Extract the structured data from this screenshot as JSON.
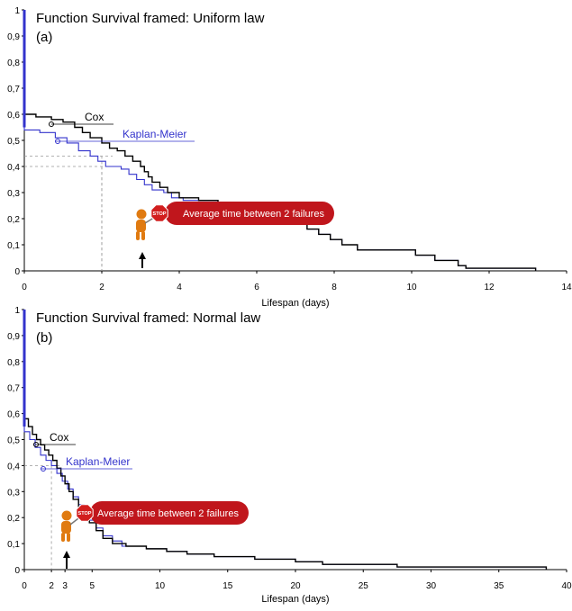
{
  "colors": {
    "cox": "#000000",
    "kaplan_meier": "#3333cc",
    "y_axis_line": "#3333cc",
    "callout_bg": "#c0161c",
    "callout_text": "#ffffff",
    "figure_orange": "#e07a10",
    "guide": "#999999"
  },
  "icons": [
    "stop-sign-icon",
    "orange-figure-icon",
    "up-arrow-icon"
  ],
  "chart_data": [
    {
      "type": "line",
      "title": "Function Survival framed: Uniform law",
      "subtitle": "(a)",
      "xlabel": "Lifespan (days)",
      "ylabel": "",
      "xlim": [
        0,
        14
      ],
      "ylim": [
        0,
        1
      ],
      "xticks": [
        "0",
        "2",
        "4",
        "6",
        "8",
        "10",
        "12",
        "14"
      ],
      "yticks": [
        "0",
        "0,1",
        "0,2",
        "0,3",
        "0,4",
        "0,5",
        "0,6",
        "0,7",
        "0,8",
        "0,9",
        "1"
      ],
      "grid": false,
      "legend": [
        "Cox",
        "Kaplan-Meier"
      ],
      "annotation": "Average time between 2 failures",
      "marker_label": "3",
      "marker_x": 3,
      "guide_points": [
        {
          "x": 2,
          "y": 0.44
        },
        {
          "x": 2,
          "y": 0.4
        }
      ],
      "series": [
        {
          "name": "Cox",
          "points": [
            [
              0,
              1
            ],
            [
              0,
              0.6
            ],
            [
              0.3,
              0.6
            ],
            [
              0.3,
              0.59
            ],
            [
              0.7,
              0.59
            ],
            [
              0.7,
              0.58
            ],
            [
              1,
              0.58
            ],
            [
              1,
              0.57
            ],
            [
              1.3,
              0.57
            ],
            [
              1.3,
              0.55
            ],
            [
              1.5,
              0.55
            ],
            [
              1.5,
              0.53
            ],
            [
              1.7,
              0.53
            ],
            [
              1.7,
              0.51
            ],
            [
              2,
              0.51
            ],
            [
              2,
              0.49
            ],
            [
              2.2,
              0.49
            ],
            [
              2.2,
              0.47
            ],
            [
              2.4,
              0.47
            ],
            [
              2.4,
              0.46
            ],
            [
              2.6,
              0.46
            ],
            [
              2.6,
              0.44
            ],
            [
              2.8,
              0.44
            ],
            [
              2.8,
              0.42
            ],
            [
              3,
              0.42
            ],
            [
              3,
              0.4
            ],
            [
              3.1,
              0.4
            ],
            [
              3.1,
              0.38
            ],
            [
              3.2,
              0.38
            ],
            [
              3.2,
              0.36
            ],
            [
              3.3,
              0.36
            ],
            [
              3.3,
              0.34
            ],
            [
              3.5,
              0.34
            ],
            [
              3.5,
              0.32
            ],
            [
              3.7,
              0.32
            ],
            [
              3.7,
              0.3
            ],
            [
              4,
              0.3
            ],
            [
              4,
              0.28
            ],
            [
              4.5,
              0.28
            ],
            [
              4.5,
              0.27
            ],
            [
              5,
              0.27
            ],
            [
              5,
              0.25
            ],
            [
              5.5,
              0.25
            ],
            [
              5.5,
              0.24
            ],
            [
              6,
              0.24
            ],
            [
              6,
              0.22
            ],
            [
              6.5,
              0.22
            ],
            [
              6.5,
              0.2
            ],
            [
              6.8,
              0.2
            ],
            [
              6.8,
              0.18
            ],
            [
              7.3,
              0.18
            ],
            [
              7.3,
              0.16
            ],
            [
              7.6,
              0.16
            ],
            [
              7.6,
              0.14
            ],
            [
              7.9,
              0.14
            ],
            [
              7.9,
              0.12
            ],
            [
              8.2,
              0.12
            ],
            [
              8.2,
              0.1
            ],
            [
              8.6,
              0.1
            ],
            [
              8.6,
              0.08
            ],
            [
              10.1,
              0.08
            ],
            [
              10.1,
              0.06
            ],
            [
              10.6,
              0.06
            ],
            [
              10.6,
              0.04
            ],
            [
              11.2,
              0.04
            ],
            [
              11.2,
              0.02
            ],
            [
              11.4,
              0.02
            ],
            [
              11.4,
              0.01
            ],
            [
              13.2,
              0.01
            ],
            [
              13.2,
              0
            ]
          ]
        },
        {
          "name": "Kaplan-Meier",
          "points": [
            [
              0,
              1
            ],
            [
              0,
              0.54
            ],
            [
              0.4,
              0.54
            ],
            [
              0.4,
              0.53
            ],
            [
              0.8,
              0.53
            ],
            [
              0.8,
              0.51
            ],
            [
              1.1,
              0.51
            ],
            [
              1.1,
              0.49
            ],
            [
              1.4,
              0.49
            ],
            [
              1.4,
              0.46
            ],
            [
              1.7,
              0.46
            ],
            [
              1.7,
              0.44
            ],
            [
              1.9,
              0.44
            ],
            [
              1.9,
              0.42
            ],
            [
              2.1,
              0.42
            ],
            [
              2.1,
              0.4
            ],
            [
              2.5,
              0.4
            ],
            [
              2.5,
              0.39
            ],
            [
              2.7,
              0.39
            ],
            [
              2.7,
              0.37
            ],
            [
              2.9,
              0.37
            ],
            [
              2.9,
              0.35
            ],
            [
              3.1,
              0.35
            ],
            [
              3.1,
              0.33
            ],
            [
              3.3,
              0.33
            ],
            [
              3.3,
              0.31
            ],
            [
              3.6,
              0.31
            ],
            [
              3.6,
              0.3
            ],
            [
              3.8,
              0.3
            ],
            [
              3.8,
              0.28
            ],
            [
              4.1,
              0.28
            ],
            [
              4.1,
              0.27
            ],
            [
              5,
              0.27
            ],
            [
              5,
              0.25
            ],
            [
              5.5,
              0.25
            ],
            [
              5.5,
              0.24
            ],
            [
              6,
              0.24
            ],
            [
              6,
              0.22
            ],
            [
              6.5,
              0.22
            ],
            [
              6.5,
              0.2
            ],
            [
              6.8,
              0.2
            ],
            [
              6.8,
              0.18
            ],
            [
              7.3,
              0.18
            ],
            [
              7.3,
              0.16
            ],
            [
              7.6,
              0.16
            ],
            [
              7.6,
              0.14
            ],
            [
              7.9,
              0.14
            ],
            [
              7.9,
              0.12
            ],
            [
              8.2,
              0.12
            ],
            [
              8.2,
              0.1
            ],
            [
              8.6,
              0.1
            ],
            [
              8.6,
              0.08
            ],
            [
              10.1,
              0.08
            ],
            [
              10.1,
              0.06
            ],
            [
              10.6,
              0.06
            ],
            [
              10.6,
              0.04
            ],
            [
              11.2,
              0.04
            ],
            [
              11.2,
              0.02
            ],
            [
              11.4,
              0.02
            ],
            [
              11.4,
              0.01
            ],
            [
              13.2,
              0.01
            ],
            [
              13.2,
              0
            ]
          ]
        }
      ]
    },
    {
      "type": "line",
      "title": "Function Survival framed: Normal law",
      "subtitle": "(b)",
      "xlabel": "Lifespan (days)",
      "ylabel": "",
      "xlim": [
        0,
        40
      ],
      "ylim": [
        0,
        1
      ],
      "xticks": [
        "0",
        "2",
        "3",
        "5",
        "10",
        "15",
        "20",
        "25",
        "30",
        "35",
        "40"
      ],
      "yticks": [
        "0",
        "0,1",
        "0,2",
        "0,3",
        "0,4",
        "0,5",
        "0,6",
        "0,7",
        "0,8",
        "0,9",
        "1"
      ],
      "grid": false,
      "legend": [
        "Cox",
        "Kaplan-Meier"
      ],
      "annotation": "Average time between 2 failures",
      "marker_label": "3",
      "marker_x": 3,
      "guide_points": [
        {
          "x": 2,
          "y": 0.4
        }
      ],
      "series": [
        {
          "name": "Cox",
          "points": [
            [
              0,
              1
            ],
            [
              0,
              0.58
            ],
            [
              0.3,
              0.58
            ],
            [
              0.3,
              0.55
            ],
            [
              0.6,
              0.55
            ],
            [
              0.6,
              0.52
            ],
            [
              0.9,
              0.52
            ],
            [
              0.9,
              0.5
            ],
            [
              1.2,
              0.5
            ],
            [
              1.2,
              0.48
            ],
            [
              1.5,
              0.48
            ],
            [
              1.5,
              0.46
            ],
            [
              1.8,
              0.46
            ],
            [
              1.8,
              0.44
            ],
            [
              2.1,
              0.44
            ],
            [
              2.1,
              0.42
            ],
            [
              2.4,
              0.42
            ],
            [
              2.4,
              0.39
            ],
            [
              2.7,
              0.39
            ],
            [
              2.7,
              0.36
            ],
            [
              3,
              0.36
            ],
            [
              3,
              0.33
            ],
            [
              3.3,
              0.33
            ],
            [
              3.3,
              0.3
            ],
            [
              3.6,
              0.3
            ],
            [
              3.6,
              0.27
            ],
            [
              4,
              0.27
            ],
            [
              4,
              0.24
            ],
            [
              4.4,
              0.24
            ],
            [
              4.4,
              0.21
            ],
            [
              4.8,
              0.21
            ],
            [
              4.8,
              0.18
            ],
            [
              5.3,
              0.18
            ],
            [
              5.3,
              0.15
            ],
            [
              5.8,
              0.15
            ],
            [
              5.8,
              0.12
            ],
            [
              6.5,
              0.12
            ],
            [
              6.5,
              0.1
            ],
            [
              7.5,
              0.1
            ],
            [
              7.5,
              0.09
            ],
            [
              9,
              0.09
            ],
            [
              9,
              0.08
            ],
            [
              10.5,
              0.08
            ],
            [
              10.5,
              0.07
            ],
            [
              12,
              0.07
            ],
            [
              12,
              0.06
            ],
            [
              14,
              0.06
            ],
            [
              14,
              0.05
            ],
            [
              17,
              0.05
            ],
            [
              17,
              0.04
            ],
            [
              20,
              0.04
            ],
            [
              20,
              0.03
            ],
            [
              22,
              0.03
            ],
            [
              22,
              0.02
            ],
            [
              27.5,
              0.02
            ],
            [
              27.5,
              0.01
            ],
            [
              38.5,
              0.01
            ],
            [
              38.5,
              0
            ]
          ]
        },
        {
          "name": "Kaplan-Meier",
          "points": [
            [
              0,
              1
            ],
            [
              0,
              0.53
            ],
            [
              0.4,
              0.53
            ],
            [
              0.4,
              0.5
            ],
            [
              0.8,
              0.5
            ],
            [
              0.8,
              0.47
            ],
            [
              1.2,
              0.47
            ],
            [
              1.2,
              0.44
            ],
            [
              1.6,
              0.44
            ],
            [
              1.6,
              0.42
            ],
            [
              2,
              0.42
            ],
            [
              2,
              0.4
            ],
            [
              2.4,
              0.4
            ],
            [
              2.4,
              0.37
            ],
            [
              2.8,
              0.37
            ],
            [
              2.8,
              0.34
            ],
            [
              3.2,
              0.34
            ],
            [
              3.2,
              0.31
            ],
            [
              3.6,
              0.31
            ],
            [
              3.6,
              0.28
            ],
            [
              4,
              0.28
            ],
            [
              4,
              0.25
            ],
            [
              4.4,
              0.25
            ],
            [
              4.4,
              0.22
            ],
            [
              4.8,
              0.22
            ],
            [
              4.8,
              0.19
            ],
            [
              5.3,
              0.19
            ],
            [
              5.3,
              0.16
            ],
            [
              5.8,
              0.16
            ],
            [
              5.8,
              0.13
            ],
            [
              6.5,
              0.13
            ],
            [
              6.5,
              0.11
            ],
            [
              7.2,
              0.11
            ],
            [
              7.2,
              0.09
            ],
            [
              9,
              0.09
            ],
            [
              9,
              0.08
            ],
            [
              10.5,
              0.08
            ],
            [
              10.5,
              0.07
            ],
            [
              12,
              0.07
            ],
            [
              12,
              0.06
            ],
            [
              14,
              0.06
            ],
            [
              14,
              0.05
            ],
            [
              17,
              0.05
            ],
            [
              17,
              0.04
            ],
            [
              20,
              0.04
            ],
            [
              20,
              0.03
            ],
            [
              22,
              0.03
            ],
            [
              22,
              0.02
            ],
            [
              27.5,
              0.02
            ],
            [
              27.5,
              0.01
            ],
            [
              38.5,
              0.01
            ],
            [
              38.5,
              0
            ]
          ]
        }
      ]
    }
  ]
}
